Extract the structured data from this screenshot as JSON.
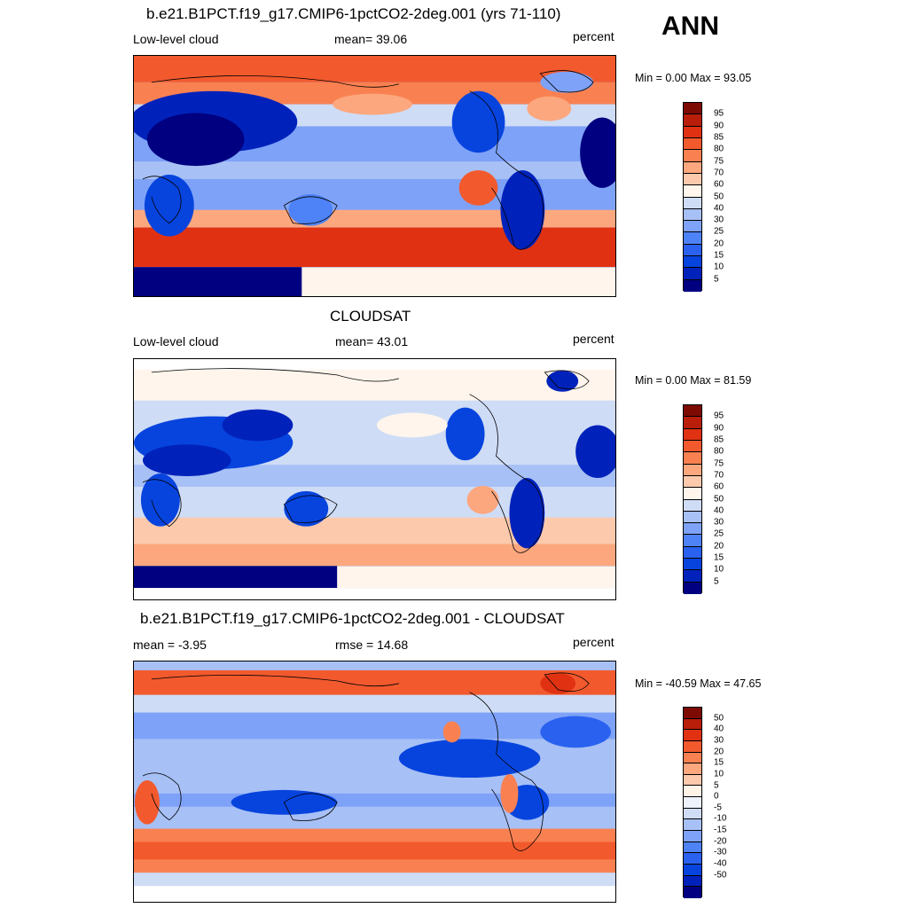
{
  "season": "ANN",
  "colors": {
    "abs_scale": [
      "#000080",
      "#0022bb",
      "#0744de",
      "#2a62ef",
      "#4e83f7",
      "#7ea2f8",
      "#a7c0f5",
      "#cfdcf6",
      "#fff5ec",
      "#fcc9ac",
      "#fca77e",
      "#f98151",
      "#f25a2e",
      "#e03212",
      "#b81e0a",
      "#7d0b04"
    ],
    "diff_scale": [
      "#000080",
      "#0022bb",
      "#0744de",
      "#2a62ef",
      "#4e83f7",
      "#7ea2f8",
      "#a7c0f5",
      "#cfdcf6",
      "#eef2fb",
      "#fff3e8",
      "#fcc9ac",
      "#fca77e",
      "#f98151",
      "#f25a2e",
      "#e03212",
      "#b81e0a",
      "#7d0b04"
    ]
  },
  "panels": [
    {
      "title": "b.e21.B1PCT.f19_g17.CMIP6-1pctCO2-2deg.001 (yrs 71-110)",
      "left": "Low-level cloud",
      "center": "mean=  39.06",
      "right": "percent",
      "minmax": "Min =   0.00 Max =  93.05",
      "colorbar_labels": [
        "95",
        "90",
        "85",
        "80",
        "75",
        "70",
        "60",
        "50",
        "40",
        "30",
        "25",
        "20",
        "15",
        "10",
        "5"
      ],
      "field_value_range": [
        0,
        93.05
      ]
    },
    {
      "title": "CLOUDSAT",
      "left": "Low-level cloud",
      "center": "mean=  43.01",
      "right": "percent",
      "minmax": "Min =   0.00 Max =  81.59",
      "colorbar_labels": [
        "95",
        "90",
        "85",
        "80",
        "75",
        "70",
        "60",
        "50",
        "40",
        "30",
        "25",
        "20",
        "15",
        "10",
        "5"
      ],
      "field_value_range": [
        0,
        81.59
      ]
    },
    {
      "title": "b.e21.B1PCT.f19_g17.CMIP6-1pctCO2-2deg.001 - CLOUDSAT",
      "left": "mean =  -3.95",
      "center": "rmse =  14.68",
      "right": "percent",
      "minmax": "Min = -40.59 Max =  47.65",
      "colorbar_labels": [
        "50",
        "40",
        "30",
        "20",
        "15",
        "10",
        "5",
        "0",
        "-5",
        "-10",
        "-15",
        "-20",
        "-30",
        "-40",
        "-50"
      ],
      "field_value_range": [
        -40.59,
        47.65
      ]
    }
  ]
}
